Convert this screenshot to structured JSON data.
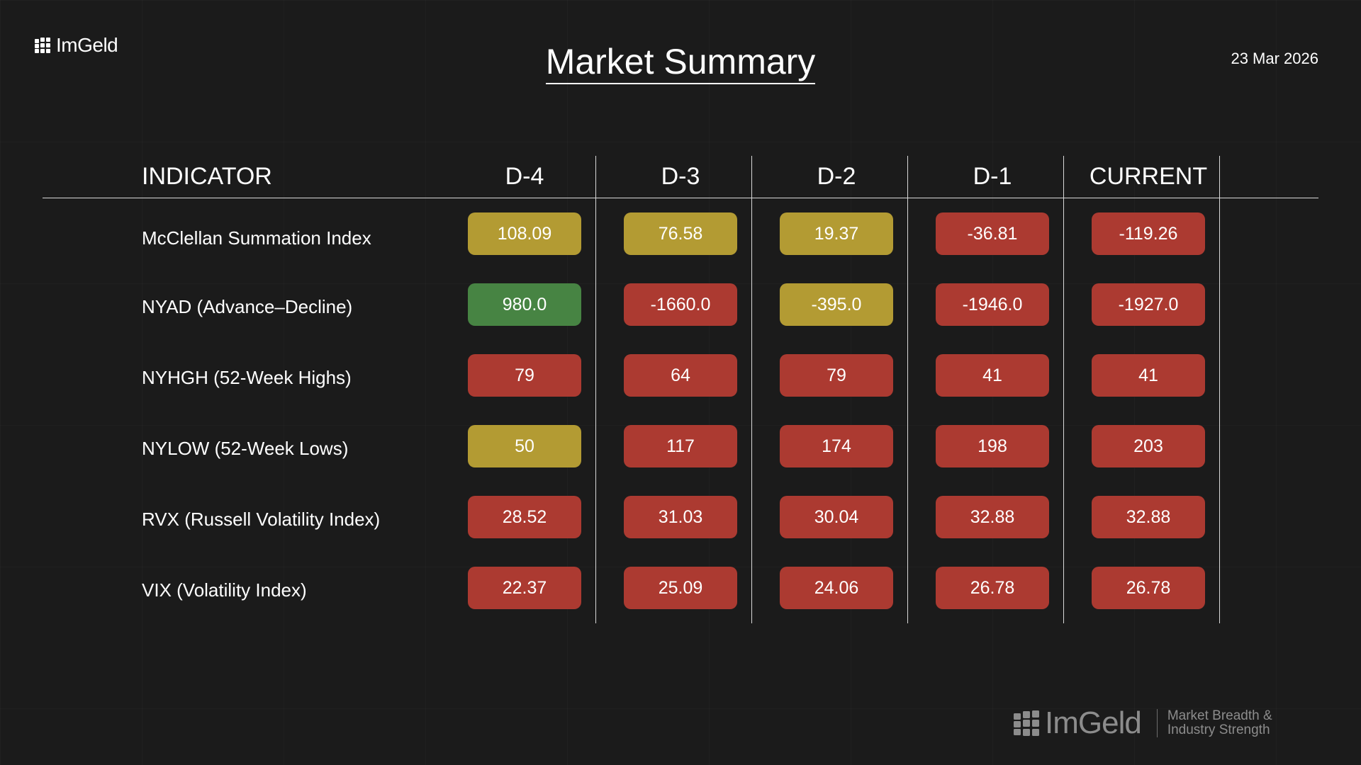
{
  "brand": {
    "logo_text": "ImGeld",
    "footer_name": "ImGeld",
    "tagline_line1": "Market Breadth &",
    "tagline_line2": "Industry Strength"
  },
  "title": "Market Summary",
  "date": "23 Mar 2026",
  "table": {
    "indicator_header": "INDICATOR",
    "columns": [
      "D-4",
      "D-3",
      "D-2",
      "D-1",
      "CURRENT"
    ],
    "rows": [
      {
        "label": "McClellan Summation Index",
        "values": [
          "108.09",
          "76.58",
          "19.37",
          "-36.81",
          "-119.26"
        ],
        "status": [
          "neutral",
          "neutral",
          "neutral",
          "bad",
          "bad"
        ]
      },
      {
        "label": "NYAD (Advance–Decline)",
        "values": [
          "980.0",
          "-1660.0",
          "-395.0",
          "-1946.0",
          "-1927.0"
        ],
        "status": [
          "good",
          "bad",
          "neutral",
          "bad",
          "bad"
        ]
      },
      {
        "label": "NYHGH (52-Week Highs)",
        "values": [
          "79",
          "64",
          "79",
          "41",
          "41"
        ],
        "status": [
          "bad",
          "bad",
          "bad",
          "bad",
          "bad"
        ]
      },
      {
        "label": "NYLOW (52-Week Lows)",
        "values": [
          "50",
          "117",
          "174",
          "198",
          "203"
        ],
        "status": [
          "neutral",
          "bad",
          "bad",
          "bad",
          "bad"
        ]
      },
      {
        "label": "RVX (Russell Volatility Index)",
        "values": [
          "28.52",
          "31.03",
          "30.04",
          "32.88",
          "32.88"
        ],
        "status": [
          "bad",
          "bad",
          "bad",
          "bad",
          "bad"
        ]
      },
      {
        "label": "VIX (Volatility Index)",
        "values": [
          "22.37",
          "25.09",
          "24.06",
          "26.78",
          "26.78"
        ],
        "status": [
          "bad",
          "bad",
          "bad",
          "bad",
          "bad"
        ]
      }
    ]
  },
  "colors": {
    "background": "#1b1b1b",
    "bad": "#ac3a31",
    "neutral": "#b39b33",
    "good": "#478443"
  }
}
